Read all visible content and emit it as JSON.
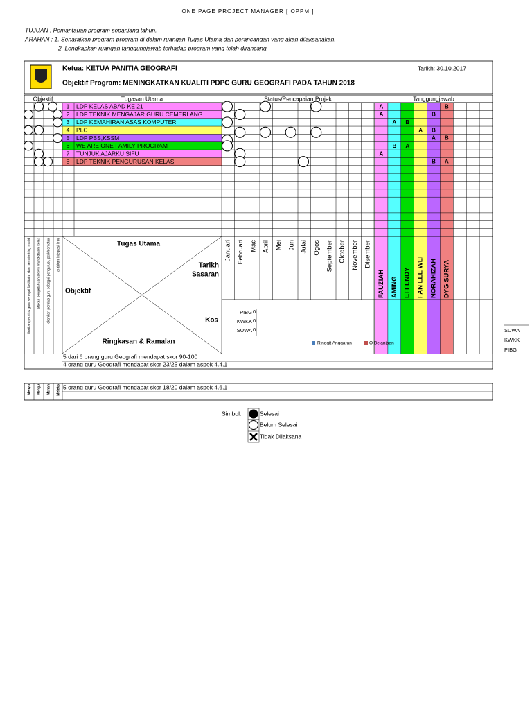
{
  "title": "ONE PAGE PROJECT MANAGER [ OPPM ]",
  "intro": [
    "TUJUAN  :  Pemantauan program sepanjang tahun.",
    "ARAHAN : 1. Senaraikan program-program di dalam ruangan Tugas Utama dan perancangan yang akan dilaksanakan.",
    "2. Lengkapkan ruangan tanggungjawab terhadap program yang telah dirancang."
  ],
  "header": {
    "ketua": "Ketua: KETUA PANITIA GEOGRAFI",
    "tarikh": "Tarikh: 30.10.2017",
    "objektif": "Objektif Program: MENINGKATKAN KUALITI PDPC GURU GEOGRAFI PADA TAHUN 2018"
  },
  "columns": [
    "Objektif",
    "Tugasan Utama",
    "Status/Pencapaian  Projek",
    "Tanggungjawab"
  ],
  "tasks": [
    {
      "no": "1",
      "name": "LDP KELAS ABAD KE 21",
      "color": "#ff88ff",
      "resp": [
        "A",
        null,
        null,
        null,
        null,
        "B"
      ]
    },
    {
      "no": "2",
      "name": "LDP TEKNIK MENGAJAR GURU CEMERLANG",
      "color": "#ff88ff",
      "resp": [
        "A",
        null,
        null,
        null,
        "B",
        null
      ]
    },
    {
      "no": "3",
      "name": "LDP KEMAHIRAN ASAS KOMPUTER",
      "color": "#55ffff",
      "resp": [
        null,
        "A",
        "B",
        null,
        null,
        null
      ]
    },
    {
      "no": "4",
      "name": "PLC",
      "color": "#ffff66",
      "resp": [
        null,
        null,
        null,
        "A",
        "B",
        null
      ]
    },
    {
      "no": "5",
      "name": "LDP PBS,KSSM",
      "color": "#bb66ff",
      "resp": [
        null,
        null,
        null,
        null,
        "A",
        "B"
      ]
    },
    {
      "no": "6",
      "name": "WE ARE ONE FAMILY PROGRAM",
      "color": "#00dd00",
      "resp": [
        null,
        "B",
        "A",
        null,
        null,
        null
      ]
    },
    {
      "no": "7",
      "name": "TUNJUK AJARKU SIFU",
      "color": "#ff88ff",
      "resp": [
        "A",
        null,
        null,
        null,
        null,
        null
      ]
    },
    {
      "no": "8",
      "name": "LDP TEKNIK PENGURUSAN KELAS",
      "color": "#f08080",
      "resp": [
        null,
        null,
        null,
        null,
        "B",
        "A"
      ]
    }
  ],
  "months": [
    "Januari",
    "Februari",
    "Mac",
    "April",
    "Mei",
    "Jun",
    "Julai",
    "Ogos",
    "September",
    "Oktober",
    "November",
    "Disember"
  ],
  "people": [
    {
      "name": "FAUZIAH",
      "color": "#ff99ff"
    },
    {
      "name": "AMING",
      "color": "#55ffff"
    },
    {
      "name": "EFFENDY",
      "color": "#00dd00"
    },
    {
      "name": "FAN LEE WEI",
      "color": "#ffff66"
    },
    {
      "name": "NORAHIZAH",
      "color": "#bb66ff"
    },
    {
      "name": "DYG SURYA",
      "color": "#f08080"
    }
  ],
  "matrix": {
    "tugas_utama": "Tugas Utama",
    "tarikh_sasaran": [
      "Tarikh",
      "Sasaran"
    ],
    "objektif": "Objektif",
    "kos": "Kos",
    "ringkasan": "Ringkasan & Ramalan"
  },
  "kos_labels": [
    "PIBG",
    "KWKK",
    "SUWA"
  ],
  "kos_value": "0",
  "kos_legend": [
    "Ringgit Anggaran",
    "O Belanjaan"
  ],
  "side_labels": [
    "SUWA",
    "KWKK",
    "PIBG"
  ],
  "objectives": [
    "ikatkan peratus guru sebagai fasilitator dan pembimbing murid",
    "atakan pengetahuan aktiviti murid dalam kelas",
    "ckahkan peratus guru sebagai pengurus , perkhidmatan",
    "arahkan integrasi ilmu"
  ],
  "objectives_short": [
    "Menyu",
    "Mengu",
    "Menan",
    "Meleks"
  ],
  "summary": [
    "5 dari 6 orang guru Geografi mendapat skor 90-100",
    "4 orang guru Geografi mendapat skor 23/25 dalam aspek 4.4.1",
    "5 orang guru Geografi mendapat skor 18/20 dalam aspek 4.6.1"
  ],
  "symbols": {
    "label": "Simbol:",
    "items": [
      "Selesai",
      "Belum Selesai",
      "Tidak Dilaksana"
    ]
  }
}
